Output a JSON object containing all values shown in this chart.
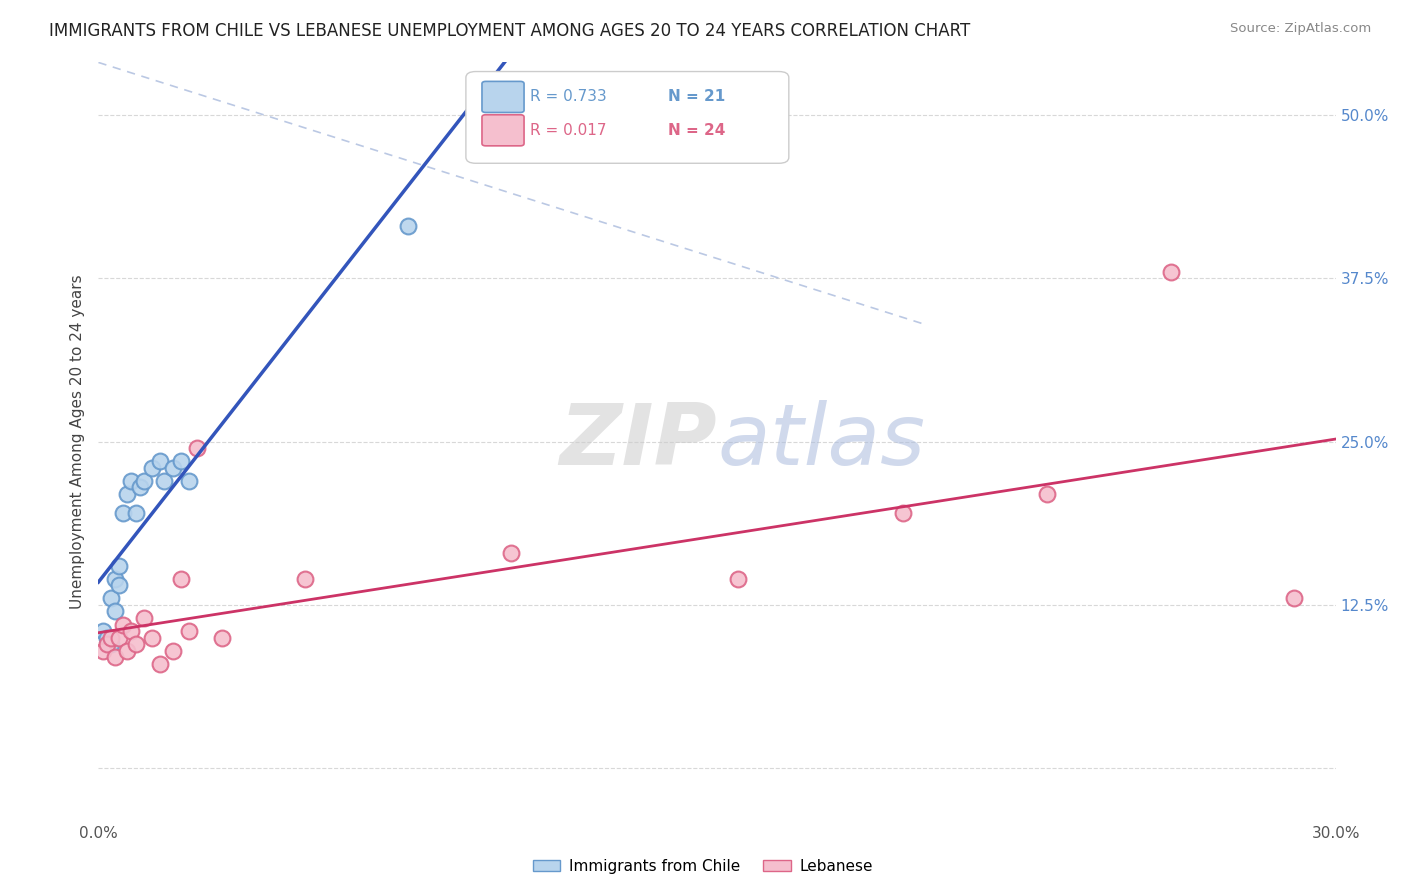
{
  "title": "IMMIGRANTS FROM CHILE VS LEBANESE UNEMPLOYMENT AMONG AGES 20 TO 24 YEARS CORRELATION CHART",
  "source": "Source: ZipAtlas.com",
  "ylabel": "Unemployment Among Ages 20 to 24 years",
  "xlim": [
    0.0,
    0.3
  ],
  "ylim": [
    -0.04,
    0.54
  ],
  "yticks": [
    0.0,
    0.125,
    0.25,
    0.375,
    0.5
  ],
  "ytick_labels_right": [
    "",
    "12.5%",
    "25.0%",
    "37.5%",
    "50.0%"
  ],
  "xticks": [
    0.0,
    0.05,
    0.1,
    0.15,
    0.2,
    0.25,
    0.3
  ],
  "xtick_labels": [
    "0.0%",
    "",
    "",
    "",
    "",
    "",
    "30.0%"
  ],
  "background_color": "#ffffff",
  "grid_color": "#d8d8d8",
  "watermark_zip": "ZIP",
  "watermark_atlas": "atlas",
  "chile_color": "#b8d4ed",
  "chile_edge_color": "#6699cc",
  "lebanese_color": "#f5bfce",
  "lebanese_edge_color": "#dd6688",
  "chile_R": "0.733",
  "chile_N": "21",
  "lebanese_R": "0.017",
  "lebanese_N": "24",
  "chile_line_color": "#3355bb",
  "lebanese_line_color": "#cc3366",
  "diag_line_color": "#aabbdd",
  "tick_color_right": "#5588cc",
  "chile_points_x": [
    0.001,
    0.002,
    0.003,
    0.003,
    0.004,
    0.004,
    0.005,
    0.005,
    0.006,
    0.007,
    0.008,
    0.009,
    0.01,
    0.011,
    0.013,
    0.015,
    0.016,
    0.018,
    0.02,
    0.022,
    0.075
  ],
  "chile_points_y": [
    0.105,
    0.1,
    0.13,
    0.095,
    0.12,
    0.145,
    0.14,
    0.155,
    0.195,
    0.21,
    0.22,
    0.195,
    0.215,
    0.22,
    0.23,
    0.235,
    0.22,
    0.23,
    0.235,
    0.22,
    0.415
  ],
  "lebanese_points_x": [
    0.001,
    0.002,
    0.003,
    0.004,
    0.005,
    0.006,
    0.007,
    0.008,
    0.009,
    0.011,
    0.013,
    0.015,
    0.018,
    0.02,
    0.022,
    0.024,
    0.03,
    0.05,
    0.1,
    0.155,
    0.195,
    0.23,
    0.26,
    0.29
  ],
  "lebanese_points_y": [
    0.09,
    0.095,
    0.1,
    0.085,
    0.1,
    0.11,
    0.09,
    0.105,
    0.095,
    0.115,
    0.1,
    0.08,
    0.09,
    0.145,
    0.105,
    0.245,
    0.1,
    0.145,
    0.165,
    0.145,
    0.195,
    0.21,
    0.38,
    0.13
  ],
  "marker_size": 130
}
